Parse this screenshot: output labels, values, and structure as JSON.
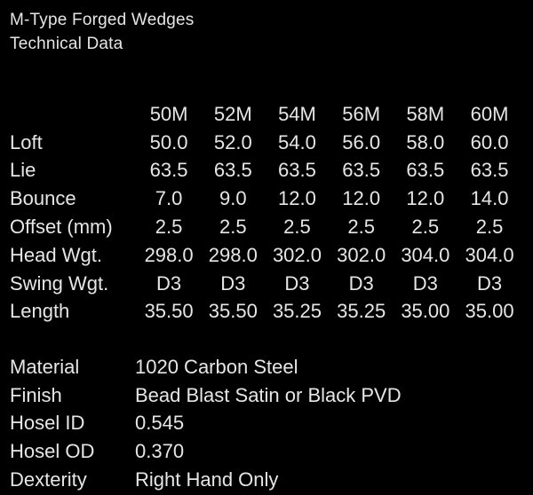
{
  "title": {
    "line1": "M-Type Forged Wedges",
    "line2": "Technical Data"
  },
  "spec_table": {
    "columns": [
      "50M",
      "52M",
      "54M",
      "56M",
      "58M",
      "60M"
    ],
    "rows": [
      {
        "label": "Loft",
        "values": [
          "50.0",
          "52.0",
          "54.0",
          "56.0",
          "58.0",
          "60.0"
        ]
      },
      {
        "label": "Lie",
        "values": [
          "63.5",
          "63.5",
          "63.5",
          "63.5",
          "63.5",
          "63.5"
        ]
      },
      {
        "label": "Bounce",
        "values": [
          "7.0",
          "9.0",
          "12.0",
          "12.0",
          "12.0",
          "14.0"
        ]
      },
      {
        "label": "Offset (mm)",
        "values": [
          "2.5",
          "2.5",
          "2.5",
          "2.5",
          "2.5",
          "2.5"
        ]
      },
      {
        "label": "Head Wgt.",
        "values": [
          "298.0",
          "298.0",
          "302.0",
          "302.0",
          "304.0",
          "304.0"
        ]
      },
      {
        "label": "Swing Wgt.",
        "values": [
          "D3",
          "D3",
          "D3",
          "D3",
          "D3",
          "D3"
        ]
      },
      {
        "label": "Length",
        "values": [
          "35.50",
          "35.50",
          "35.25",
          "35.25",
          "35.00",
          "35.00"
        ]
      }
    ]
  },
  "info": [
    {
      "label": "Material",
      "value": "1020 Carbon Steel"
    },
    {
      "label": "Finish",
      "value": "Bead Blast Satin or Black PVD"
    },
    {
      "label": "Hosel ID",
      "value": "0.545"
    },
    {
      "label": "Hosel OD",
      "value": "0.370"
    },
    {
      "label": "Dexterity",
      "value": "Right Hand Only"
    }
  ]
}
